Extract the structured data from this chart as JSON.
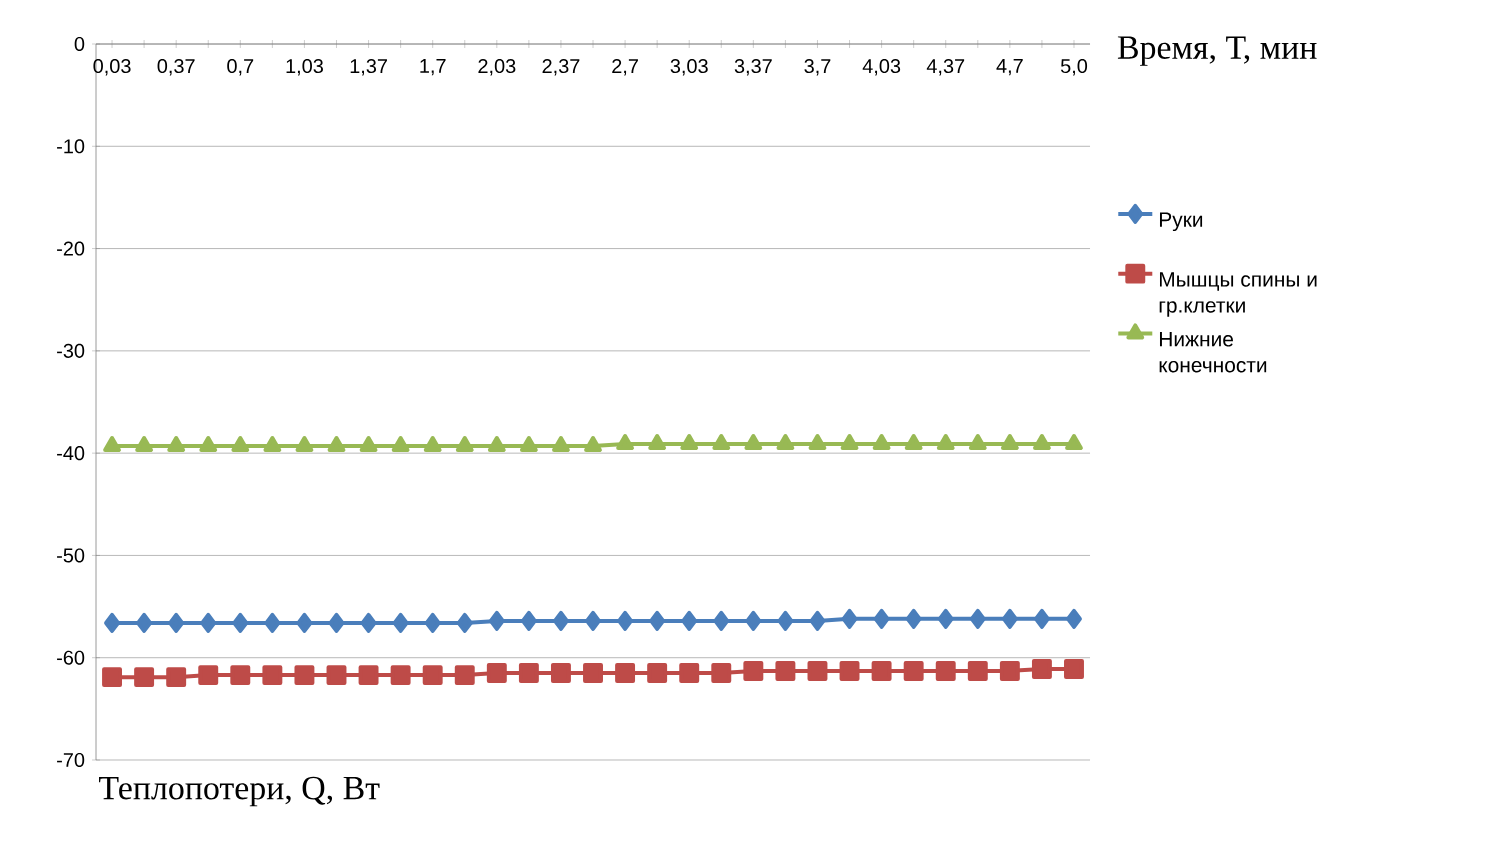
{
  "chart_data": {
    "type": "line",
    "xlabel": "Время, Т, мин",
    "annotations": [
      "Теплопотери, Q, Вт"
    ],
    "categories": [
      "0,03",
      null,
      "0,37",
      null,
      "0,7",
      null,
      "1,03",
      null,
      "1,37",
      null,
      "1,7",
      null,
      "2,03",
      null,
      "2,37",
      null,
      "2,7",
      null,
      "3,03",
      null,
      "3,37",
      null,
      "3,7",
      null,
      "4,03",
      null,
      "4,37",
      null,
      "4,7",
      null,
      "5,0"
    ],
    "series": [
      {
        "name": "Руки",
        "color": "#4a7ebb",
        "marker": "diamond",
        "values": [
          -56.6,
          -56.6,
          -56.6,
          -56.6,
          -56.6,
          -56.6,
          -56.6,
          -56.6,
          -56.6,
          -56.6,
          -56.6,
          -56.6,
          -56.4,
          -56.4,
          -56.4,
          -56.4,
          -56.4,
          -56.4,
          -56.4,
          -56.4,
          -56.4,
          -56.4,
          -56.4,
          -56.2,
          -56.2,
          -56.2,
          -56.2,
          -56.2,
          -56.2,
          -56.2,
          -56.2
        ]
      },
      {
        "name": "Мышцы спины и гр.клетки",
        "color": "#be4b48",
        "marker": "square",
        "values": [
          -61.9,
          -61.9,
          -61.9,
          -61.7,
          -61.7,
          -61.7,
          -61.7,
          -61.7,
          -61.7,
          -61.7,
          -61.7,
          -61.7,
          -61.5,
          -61.5,
          -61.5,
          -61.5,
          -61.5,
          -61.5,
          -61.5,
          -61.5,
          -61.3,
          -61.3,
          -61.3,
          -61.3,
          -61.3,
          -61.3,
          -61.3,
          -61.3,
          -61.3,
          -61.1,
          -61.1
        ]
      },
      {
        "name": "Нижние конечности",
        "color": "#98b954",
        "marker": "triangle",
        "values": [
          -39.3,
          -39.3,
          -39.3,
          -39.3,
          -39.3,
          -39.3,
          -39.3,
          -39.3,
          -39.3,
          -39.3,
          -39.3,
          -39.3,
          -39.3,
          -39.3,
          -39.3,
          -39.3,
          -39.1,
          -39.1,
          -39.1,
          -39.1,
          -39.1,
          -39.1,
          -39.1,
          -39.1,
          -39.1,
          -39.1,
          -39.1,
          -39.1,
          -39.1,
          -39.1,
          -39.1
        ]
      }
    ],
    "ylim": [
      -70,
      0
    ],
    "yticks": [
      0,
      -10,
      -20,
      -30,
      -40,
      -50,
      -60,
      -70
    ],
    "grid": "y",
    "legend": "right"
  }
}
